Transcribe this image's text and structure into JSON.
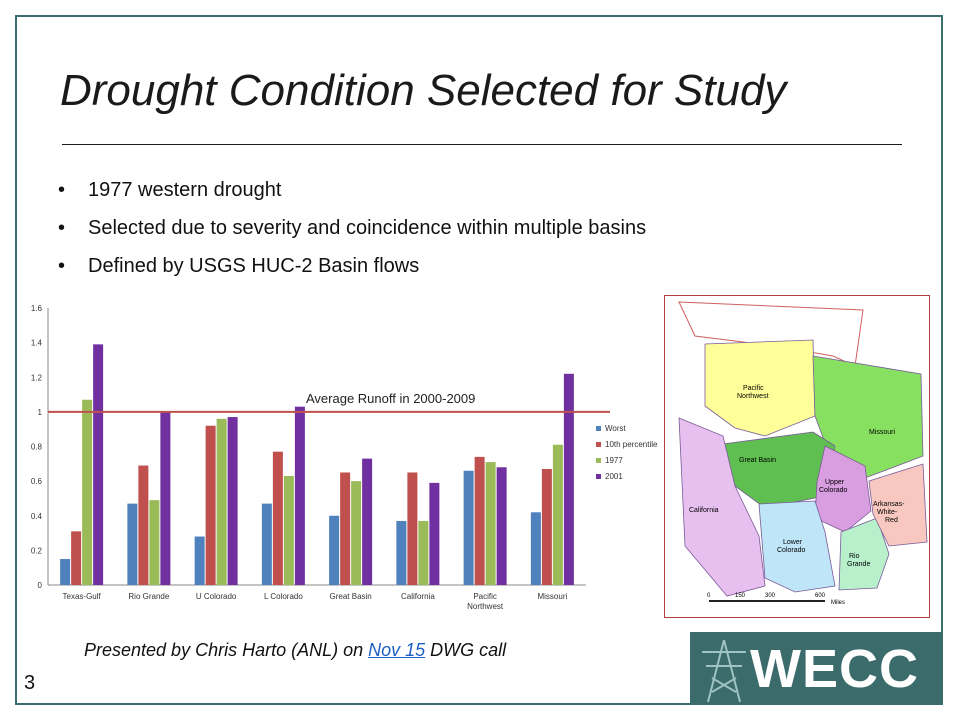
{
  "slide": {
    "title": "Drought Condition Selected for Study",
    "bullets": [
      "1977 western drought",
      "Selected due to severity and coincidence within multiple basins",
      "Defined by USGS HUC-2 Basin flows"
    ],
    "caption_prefix": "Presented by Chris Harto (ANL) on ",
    "caption_link": "Nov 15",
    "caption_suffix": " DWG call",
    "slide_number": "3",
    "logo_text": "WECC"
  },
  "chart_data": {
    "type": "bar",
    "categories": [
      "Texas-Gulf",
      "Rio Grande",
      "U Colorado",
      "L Colorado",
      "Great Basin",
      "California",
      "Pacific Northwest",
      "Missouri"
    ],
    "series": [
      {
        "name": "Worst",
        "color": "#4f81bd",
        "values": [
          0.15,
          0.47,
          0.28,
          0.47,
          0.4,
          0.37,
          0.66,
          0.42
        ]
      },
      {
        "name": "10th percentile",
        "color": "#c0504d",
        "values": [
          0.31,
          0.69,
          0.92,
          0.77,
          0.65,
          0.65,
          0.74,
          0.67
        ]
      },
      {
        "name": "1977",
        "color": "#9bbb59",
        "values": [
          1.07,
          0.49,
          0.96,
          0.63,
          0.6,
          0.37,
          0.71,
          0.81
        ]
      },
      {
        "name": "2001",
        "color": "#7030a0",
        "values": [
          1.39,
          1.0,
          0.97,
          1.03,
          0.73,
          0.59,
          0.68,
          1.22
        ]
      }
    ],
    "ylim": [
      0,
      1.6
    ],
    "yticks": [
      "0",
      "0.2",
      "0.4",
      "0.6",
      "0.8",
      "1",
      "1.2",
      "1.4",
      "1.6"
    ],
    "reference_line": {
      "value": 1,
      "label": "Average Runoff in 2000-2009",
      "color": "#c0504d"
    },
    "legend_position": "right",
    "grid": false
  },
  "map": {
    "regions": [
      {
        "name": "Pacific Northwest",
        "color": "#ffff99"
      },
      {
        "name": "Missouri",
        "color": "#88e060"
      },
      {
        "name": "Great Basin",
        "color": "#5fbf50"
      },
      {
        "name": "California",
        "color": "#e8c0f0"
      },
      {
        "name": "Upper Colorado",
        "color": "#d89ee0"
      },
      {
        "name": "Lower Colorado",
        "color": "#bfe6f8"
      },
      {
        "name": "Rio Grande",
        "color": "#b8f0cc"
      },
      {
        "name": "Arkansas-White-Red",
        "color": "#f8c8c0"
      }
    ],
    "scale_labels": [
      "0",
      "150",
      "300",
      "600"
    ],
    "scale_unit": "Miles"
  }
}
